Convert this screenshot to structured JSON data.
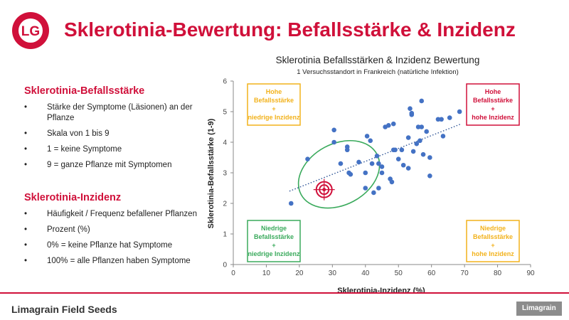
{
  "header": {
    "title": "Sklerotinia-Bewertung: Befallsstärke & Inzidenz",
    "logo_text": "LG"
  },
  "left": {
    "section1": {
      "heading": "Sklerotinia-Befallsstärke",
      "bullets": [
        "Stärke der Symptome (Läsionen) an der Pflanze",
        "Skala von 1 bis 9",
        "1 = keine Symptome",
        "9 = ganze Pflanze mit Symptomen"
      ]
    },
    "section2": {
      "heading": "Sklerotinia-Inzidenz",
      "bullets": [
        "Häufigkeit / Frequenz befallener Pflanzen",
        "Prozent (%)",
        "0% = keine Pflanze hat Symptome",
        "100% = alle Pflanzen haben Symptome"
      ]
    }
  },
  "footer": {
    "left": "Limagrain Field Seeds",
    "right": "Limagrain"
  },
  "colors": {
    "accent": "#d0103a",
    "points": "#4472c4",
    "ellipse": "#3aaa5c",
    "box_yellow": "#f2b21c",
    "box_red": "#d0103a",
    "box_green": "#3aaa5c"
  },
  "chart_data": {
    "type": "scatter",
    "title": "Sklerotinia Befallsstärken & Inzidenz Bewertung",
    "subtitle": "1 Versuchsstandort in Frankreich (natürliche Infektion)",
    "xlabel": "Sklerotinia-Inzidenz (%)",
    "ylabel": "Sklerotinia-Befallsstärke (1-9)",
    "xlim": [
      0,
      90
    ],
    "ylim": [
      0,
      6
    ],
    "xticks": [
      "0",
      "10",
      "20",
      "30",
      "40",
      "50",
      "60",
      "70",
      "80",
      "90"
    ],
    "yticks": [
      "0",
      "1",
      "2",
      "3",
      "4",
      "5",
      "6"
    ],
    "grid": false,
    "trendline": {
      "style": "dotted",
      "start": [
        17,
        2.4
      ],
      "end": [
        69,
        4.6
      ]
    },
    "points": [
      [
        17.5,
        2.0
      ],
      [
        22.5,
        3.45
      ],
      [
        30.5,
        4.4
      ],
      [
        30.5,
        4.0
      ],
      [
        32.5,
        3.3
      ],
      [
        34.5,
        3.85
      ],
      [
        34.5,
        3.75
      ],
      [
        35.0,
        3.0
      ],
      [
        35.5,
        2.95
      ],
      [
        38.0,
        3.35
      ],
      [
        40.0,
        3.0
      ],
      [
        40.0,
        2.5
      ],
      [
        40.5,
        4.2
      ],
      [
        41.5,
        4.05
      ],
      [
        42.0,
        3.3
      ],
      [
        42.5,
        2.35
      ],
      [
        43.5,
        3.55
      ],
      [
        44.0,
        3.3
      ],
      [
        44.0,
        2.5
      ],
      [
        45.0,
        3.2
      ],
      [
        45.0,
        3.0
      ],
      [
        46.0,
        4.5
      ],
      [
        47.0,
        4.55
      ],
      [
        47.5,
        2.8
      ],
      [
        48.0,
        2.7
      ],
      [
        48.5,
        3.75
      ],
      [
        48.5,
        4.6
      ],
      [
        49.0,
        3.75
      ],
      [
        50.0,
        3.45
      ],
      [
        51.0,
        3.75
      ],
      [
        51.5,
        3.25
      ],
      [
        53.0,
        4.15
      ],
      [
        53.0,
        3.15
      ],
      [
        53.5,
        5.1
      ],
      [
        54.0,
        4.95
      ],
      [
        54.0,
        4.9
      ],
      [
        54.5,
        3.7
      ],
      [
        55.5,
        3.95
      ],
      [
        56.0,
        4.5
      ],
      [
        56.5,
        4.05
      ],
      [
        57.0,
        5.35
      ],
      [
        57.0,
        4.5
      ],
      [
        57.5,
        3.6
      ],
      [
        58.5,
        4.35
      ],
      [
        59.5,
        3.5
      ],
      [
        59.5,
        2.9
      ],
      [
        62.0,
        4.75
      ],
      [
        63.0,
        4.75
      ],
      [
        63.5,
        4.2
      ],
      [
        65.5,
        4.8
      ],
      [
        68.5,
        5.0
      ]
    ],
    "ellipse": {
      "cx": 32,
      "cy": 2.95,
      "rx": 13,
      "ry": 1.0,
      "rotate_deg": -28
    },
    "target": {
      "x": 27.5,
      "y": 2.45
    },
    "annotations": {
      "top_left": [
        "Hohe",
        "Befallsstärke",
        "+",
        "niedrige Inzidenz"
      ],
      "top_right": [
        "Hohe",
        "Befallsstärke",
        "+",
        "hohe Inzidenz"
      ],
      "bottom_left": [
        "Niedrige",
        "Befallsstärke",
        "+",
        "niedrige Inzidenz"
      ],
      "bottom_right": [
        "Niedrige",
        "Befallsstärke",
        "+",
        "hohe Inzidenz"
      ]
    }
  }
}
